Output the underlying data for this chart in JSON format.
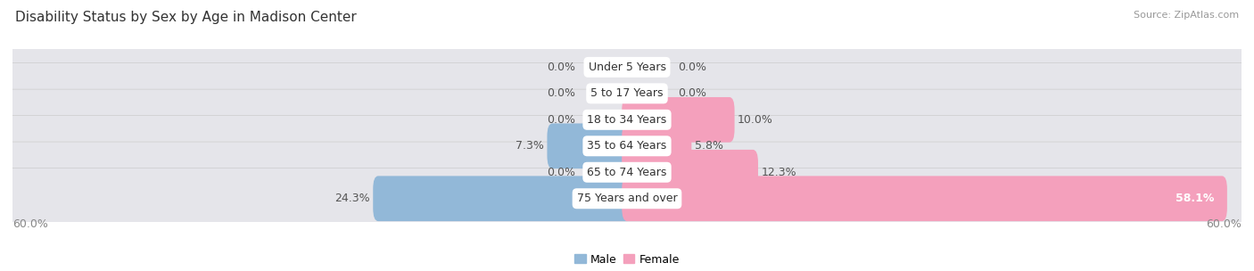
{
  "title": "Disability Status by Sex by Age in Madison Center",
  "source": "Source: ZipAtlas.com",
  "categories": [
    "Under 5 Years",
    "5 to 17 Years",
    "18 to 34 Years",
    "35 to 64 Years",
    "65 to 74 Years",
    "75 Years and over"
  ],
  "male_values": [
    0.0,
    0.0,
    0.0,
    7.3,
    0.0,
    24.3
  ],
  "female_values": [
    0.0,
    0.0,
    10.0,
    5.8,
    12.3,
    58.1
  ],
  "male_color": "#92b8d8",
  "female_color": "#f4a0bc",
  "bar_bg_color": "#e5e5ea",
  "max_val": 60.0,
  "title_fontsize": 11,
  "label_fontsize": 9,
  "value_fontsize": 9,
  "source_fontsize": 8
}
